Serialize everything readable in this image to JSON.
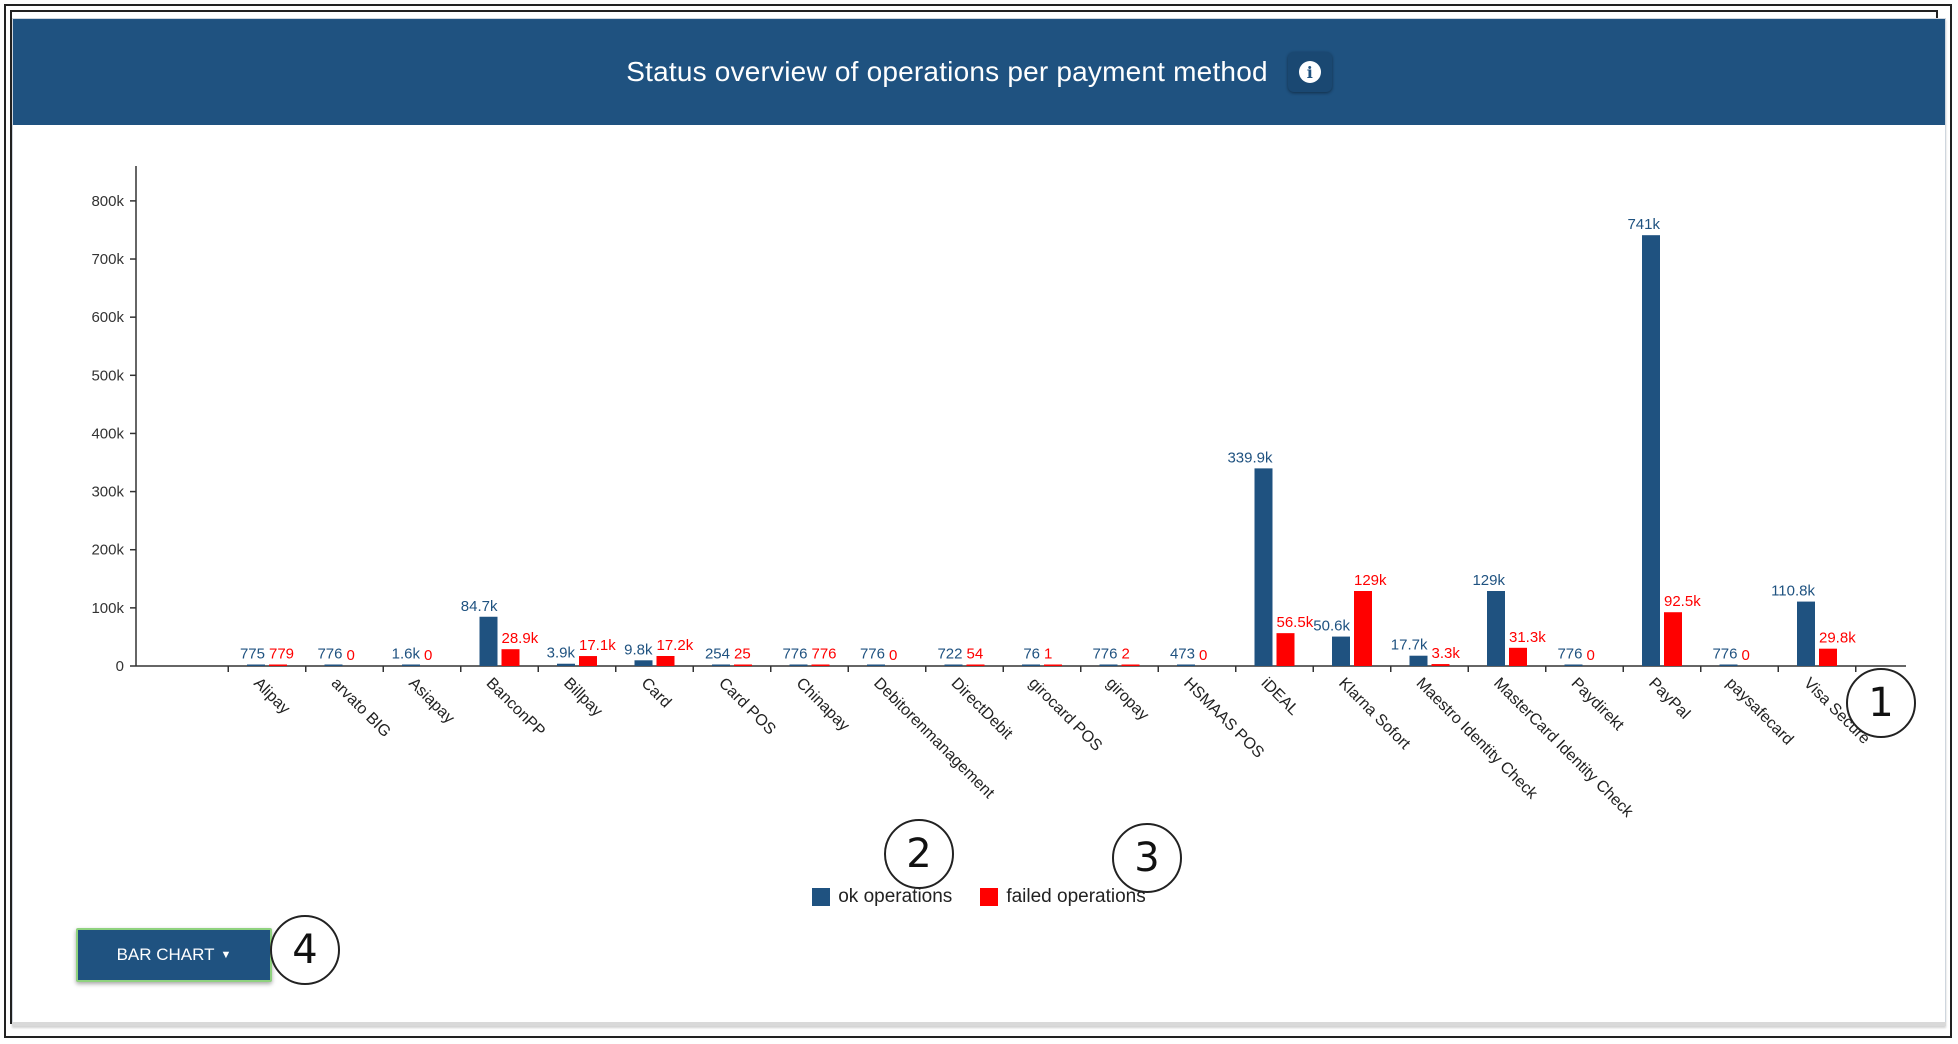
{
  "header": {
    "title": "Status overview of operations per payment method"
  },
  "colors": {
    "header_bg": "#1f5280",
    "ok": "#1f5280",
    "failed": "#ff0000"
  },
  "chart_data": {
    "type": "bar",
    "categories": [
      "Alipay",
      "arvato BIG",
      "Asiapay",
      "BanconPP",
      "Billpay",
      "Card",
      "Card POS",
      "Chinapay",
      "Debitorenmanagement",
      "DirectDebit",
      "girocard POS",
      "giropay",
      "HSMAAS POS",
      "iDEAL",
      "Klarna Sofort",
      "Maestro Identity Check",
      "MasterCard Identity Check",
      "Paydirekt",
      "PayPal",
      "paysafecard",
      "Visa Secure"
    ],
    "series": [
      {
        "name": "ok operations",
        "values": [
          775,
          776,
          1600,
          84700,
          3900,
          9800,
          254,
          776,
          776,
          722,
          76,
          776,
          473,
          339900,
          50600,
          17700,
          129000,
          776,
          741000,
          776,
          110800
        ],
        "labels": [
          "775",
          "776",
          "1.6k",
          "84.7k",
          "3.9k",
          "9.8k",
          "254",
          "776",
          "776",
          "722",
          "76",
          "776",
          "473",
          "339.9k",
          "50.6k",
          "17.7k",
          "129k",
          "776",
          "741k",
          "776",
          "110.8k"
        ]
      },
      {
        "name": "failed operations",
        "values": [
          779,
          0,
          0,
          28900,
          17100,
          17200,
          25,
          776,
          0,
          54,
          1,
          2,
          0,
          56500,
          129000,
          3300,
          31300,
          0,
          92500,
          0,
          29800
        ],
        "labels": [
          "779",
          "0",
          "0",
          "28.9k",
          "17.1k",
          "17.2k",
          "25",
          "776",
          "0",
          "54",
          "1",
          "2",
          "0",
          "56.5k",
          "129k",
          "3.3k",
          "31.3k",
          "0",
          "92.5k",
          "0",
          "29.8k"
        ]
      }
    ],
    "ylim": [
      0,
      860000
    ],
    "yticks": [
      0,
      100000,
      200000,
      300000,
      400000,
      500000,
      600000,
      700000,
      800000
    ],
    "ytick_labels": [
      "0",
      "100k",
      "200k",
      "300k",
      "400k",
      "500k",
      "600k",
      "700k",
      "800k"
    ],
    "xlabel": "",
    "ylabel": "",
    "legend_position": "bottom",
    "grid": false
  },
  "controls": {
    "chart_type_label": "BAR CHART"
  },
  "callouts": [
    "1",
    "2",
    "3",
    "4"
  ]
}
